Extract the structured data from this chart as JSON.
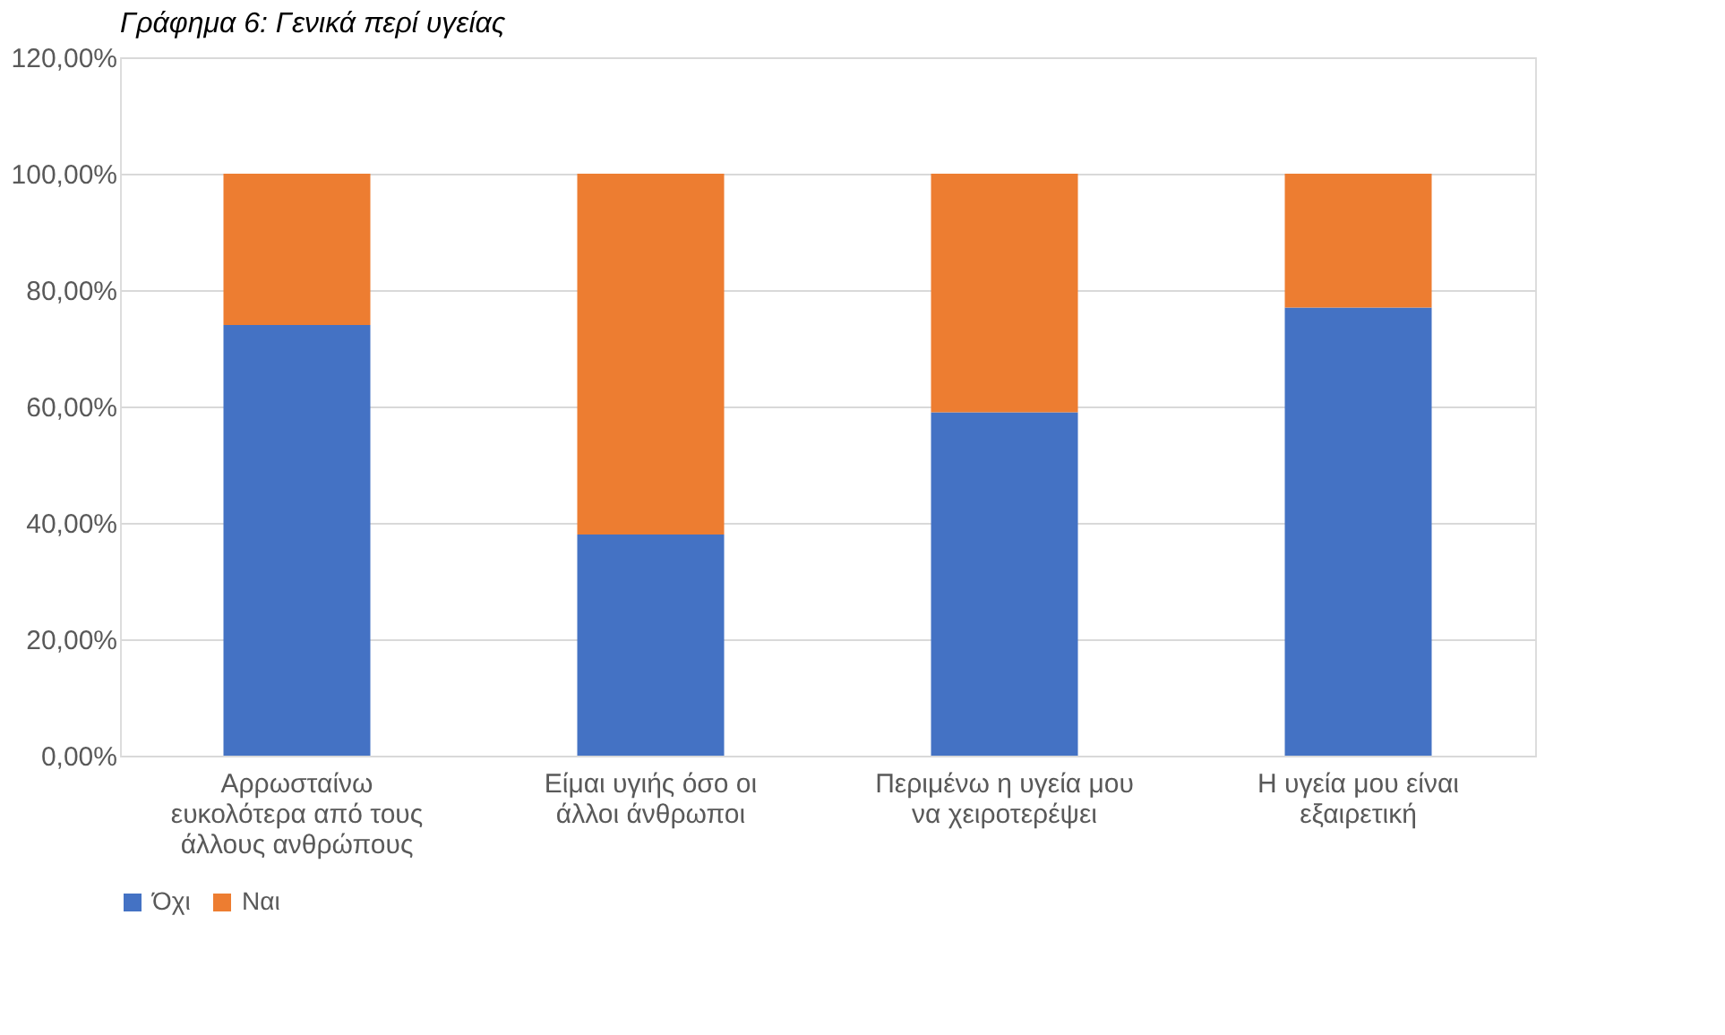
{
  "chart_data": {
    "type": "bar",
    "stacked": true,
    "title": "Γράφημα 6: Γενικά περί υγείας",
    "categories": [
      "Αρρωσταίνω ευκολότερα από τους άλλους ανθρώπους",
      "Είμαι υγιής όσο οι άλλοι άνθρωποι",
      "Περιμένω η υγεία μου να χειροτερέψει",
      "Η υγεία μου είναι εξαιρετική"
    ],
    "series": [
      {
        "name": "Όχι",
        "color": "#4472c4",
        "values": [
          74,
          38,
          59,
          77
        ]
      },
      {
        "name": "Ναι",
        "color": "#ed7d31",
        "values": [
          26,
          62,
          41,
          23
        ]
      }
    ],
    "ylim": [
      0,
      120
    ],
    "yticks": [
      {
        "value": 0,
        "label": "0,00%"
      },
      {
        "value": 20,
        "label": "20,00%"
      },
      {
        "value": 40,
        "label": "40,00%"
      },
      {
        "value": 60,
        "label": "60,00%"
      },
      {
        "value": 80,
        "label": "80,00%"
      },
      {
        "value": 100,
        "label": "100,00%"
      },
      {
        "value": 120,
        "label": "120,00%"
      }
    ],
    "grid": "y",
    "legend": "bottom"
  }
}
